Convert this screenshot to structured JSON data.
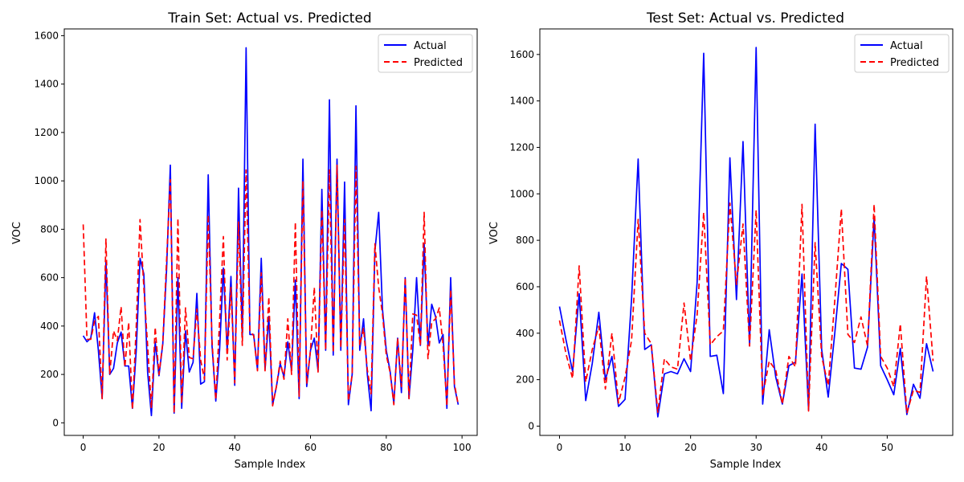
{
  "chart_data": [
    {
      "type": "line",
      "title": "Train Set: Actual vs. Predicted",
      "xlabel": "Sample Index",
      "ylabel": "VOC",
      "xlim": [
        -5,
        104
      ],
      "ylim": [
        -52,
        1628
      ],
      "xticks": [
        0,
        20,
        40,
        60,
        80,
        100
      ],
      "yticks": [
        0,
        200,
        400,
        600,
        800,
        1000,
        1200,
        1400,
        1600
      ],
      "grid": false,
      "legend": "top-right",
      "x": [
        0,
        1,
        2,
        3,
        4,
        5,
        6,
        7,
        8,
        9,
        10,
        11,
        12,
        13,
        14,
        15,
        16,
        17,
        18,
        19,
        20,
        21,
        22,
        23,
        24,
        25,
        26,
        27,
        28,
        29,
        30,
        31,
        32,
        33,
        34,
        35,
        36,
        37,
        38,
        39,
        40,
        41,
        42,
        43,
        44,
        45,
        46,
        47,
        48,
        49,
        50,
        51,
        52,
        53,
        54,
        55,
        56,
        57,
        58,
        59,
        60,
        61,
        62,
        63,
        64,
        65,
        66,
        67,
        68,
        69,
        70,
        71,
        72,
        73,
        74,
        75,
        76,
        77,
        78,
        79,
        80,
        81,
        82,
        83,
        84,
        85,
        86,
        87,
        88,
        89,
        90,
        91,
        92,
        93,
        94,
        95,
        96,
        97,
        98,
        99
      ],
      "series": [
        {
          "name": "Actual",
          "color": "#0000ff",
          "dash": "solid",
          "values": [
            360,
            335,
            350,
            455,
            300,
            100,
            670,
            200,
            225,
            330,
            375,
            235,
            235,
            60,
            300,
            680,
            615,
            210,
            30,
            335,
            195,
            325,
            630,
            1065,
            40,
            600,
            60,
            380,
            210,
            250,
            535,
            160,
            170,
            1025,
            320,
            90,
            300,
            640,
            300,
            605,
            155,
            970,
            350,
            1550,
            365,
            365,
            220,
            680,
            220,
            440,
            75,
            150,
            245,
            190,
            335,
            215,
            590,
            100,
            1090,
            150,
            300,
            350,
            215,
            965,
            300,
            1335,
            280,
            1090,
            300,
            995,
            75,
            200,
            1310,
            300,
            430,
            200,
            50,
            710,
            870,
            470,
            300,
            215,
            80,
            350,
            125,
            600,
            100,
            300,
            600,
            320,
            740,
            320,
            490,
            440,
            330,
            365,
            60,
            600,
            150,
            75
          ]
        },
        {
          "name": "Predicted",
          "color": "#ff0000",
          "dash": "dashed",
          "values": [
            820,
            345,
            345,
            420,
            440,
            100,
            760,
            200,
            380,
            340,
            480,
            230,
            415,
            55,
            400,
            840,
            560,
            320,
            60,
            395,
            200,
            330,
            670,
            1005,
            40,
            845,
            80,
            475,
            270,
            265,
            470,
            260,
            180,
            860,
            340,
            95,
            420,
            770,
            260,
            560,
            165,
            830,
            320,
            1045,
            380,
            360,
            215,
            620,
            215,
            520,
            70,
            150,
            255,
            180,
            430,
            200,
            830,
            110,
            1000,
            160,
            300,
            560,
            210,
            880,
            300,
            1045,
            290,
            1065,
            310,
            840,
            90,
            200,
            1060,
            320,
            390,
            220,
            120,
            740,
            560,
            450,
            280,
            210,
            75,
            350,
            150,
            600,
            100,
            450,
            445,
            320,
            870,
            265,
            415,
            430,
            475,
            320,
            70,
            550,
            160,
            75
          ]
        }
      ]
    },
    {
      "type": "line",
      "title": "Test Set: Actual vs. Predicted",
      "xlabel": "Sample Index",
      "ylabel": "VOC",
      "xlim": [
        -3,
        60
      ],
      "ylim": [
        -40,
        1710
      ],
      "xticks": [
        0,
        10,
        20,
        30,
        40,
        50
      ],
      "yticks": [
        0,
        200,
        400,
        600,
        800,
        1000,
        1200,
        1400,
        1600
      ],
      "grid": false,
      "legend": "top-right",
      "x": [
        0,
        1,
        2,
        3,
        4,
        5,
        6,
        7,
        8,
        9,
        10,
        11,
        12,
        13,
        14,
        15,
        16,
        17,
        18,
        19,
        20,
        21,
        22,
        23,
        24,
        25,
        26,
        27,
        28,
        29,
        30,
        31,
        32,
        33,
        34,
        35,
        36,
        37,
        38,
        39,
        40,
        41,
        42,
        43,
        44,
        45,
        46,
        47,
        48,
        49,
        50,
        51,
        52,
        53,
        54,
        55,
        56,
        57
      ],
      "series": [
        {
          "name": "Actual",
          "color": "#0000ff",
          "dash": "solid",
          "values": [
            515,
            370,
            235,
            570,
            110,
            270,
            490,
            200,
            300,
            85,
            115,
            550,
            1150,
            330,
            350,
            40,
            225,
            235,
            225,
            290,
            235,
            620,
            1605,
            300,
            305,
            140,
            1155,
            545,
            1225,
            345,
            1630,
            95,
            415,
            210,
            95,
            260,
            275,
            655,
            70,
            1300,
            330,
            125,
            400,
            700,
            675,
            250,
            245,
            340,
            900,
            260,
            200,
            135,
            335,
            50,
            180,
            120,
            355,
            235
          ]
        },
        {
          "name": "Predicted",
          "color": "#ff0000",
          "dash": "dashed",
          "values": [
            455,
            310,
            205,
            690,
            190,
            330,
            430,
            160,
            400,
            100,
            210,
            370,
            890,
            400,
            355,
            60,
            290,
            255,
            245,
            530,
            280,
            480,
            920,
            350,
            385,
            410,
            960,
            610,
            870,
            345,
            930,
            130,
            280,
            240,
            95,
            300,
            255,
            955,
            65,
            790,
            300,
            175,
            540,
            935,
            395,
            360,
            470,
            345,
            955,
            300,
            250,
            170,
            440,
            55,
            155,
            145,
            645,
            280
          ]
        }
      ]
    }
  ]
}
